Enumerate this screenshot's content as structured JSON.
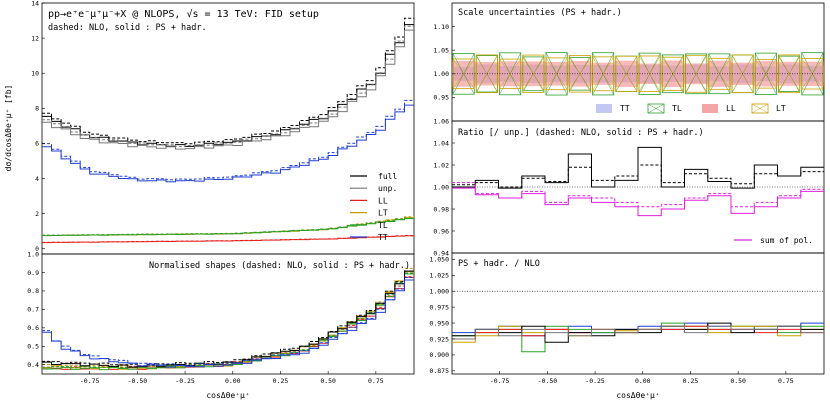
{
  "chart_data": [
    {
      "id": "main",
      "type": "line",
      "title": "pp→e⁺e⁻μ⁺μ⁻+X @ NLOPS, √s = 13 TeV: FID setup",
      "subtitle": "dashed: NLO, solid : PS + hadr.",
      "ylabel": "dσ/dcosΔθe⁺μ⁺ [fb]",
      "ylim": [
        -0.3,
        14
      ],
      "yticks": [
        0,
        2,
        4,
        6,
        8,
        10,
        12,
        14
      ],
      "bins": [
        -1.0,
        0.95
      ],
      "nbins": 39,
      "legend": [
        "full",
        "unp.",
        "LL",
        "LT",
        "TL",
        "TT"
      ],
      "series": [
        {
          "name": "full",
          "color": "#000000",
          "anchors": [
            [
              -1.0,
              7.6
            ],
            [
              -0.75,
              6.4
            ],
            [
              -0.5,
              6.0
            ],
            [
              -0.25,
              5.85
            ],
            [
              0.0,
              6.05
            ],
            [
              0.25,
              6.6
            ],
            [
              0.5,
              7.6
            ],
            [
              0.75,
              9.6
            ],
            [
              0.95,
              13.2
            ]
          ]
        },
        {
          "name": "unp.",
          "color": "#777777",
          "anchors": [
            [
              -1.0,
              7.3
            ],
            [
              -0.75,
              6.2
            ],
            [
              -0.5,
              5.85
            ],
            [
              -0.25,
              5.7
            ],
            [
              0.0,
              5.9
            ],
            [
              0.25,
              6.4
            ],
            [
              0.5,
              7.3
            ],
            [
              0.75,
              9.3
            ],
            [
              0.95,
              12.8
            ]
          ]
        },
        {
          "name": "LL",
          "color": "#e8201c",
          "anchors": [
            [
              -1.0,
              0.35
            ],
            [
              -0.5,
              0.4
            ],
            [
              0.0,
              0.45
            ],
            [
              0.5,
              0.55
            ],
            [
              0.95,
              0.75
            ]
          ]
        },
        {
          "name": "LT",
          "color": "#c8a000",
          "anchors": [
            [
              -1.0,
              0.75
            ],
            [
              -0.5,
              0.8
            ],
            [
              0.0,
              0.85
            ],
            [
              0.5,
              1.1
            ],
            [
              0.95,
              1.8
            ]
          ]
        },
        {
          "name": "TL",
          "color": "#2ca02c",
          "anchors": [
            [
              -1.0,
              0.75
            ],
            [
              -0.5,
              0.8
            ],
            [
              0.0,
              0.85
            ],
            [
              0.5,
              1.1
            ],
            [
              0.95,
              1.75
            ]
          ]
        },
        {
          "name": "TT",
          "color": "#1f3fd6",
          "anchors": [
            [
              -1.0,
              6.0
            ],
            [
              -0.75,
              4.35
            ],
            [
              -0.5,
              3.9
            ],
            [
              -0.25,
              3.85
            ],
            [
              0.0,
              4.0
            ],
            [
              0.25,
              4.4
            ],
            [
              0.5,
              5.2
            ],
            [
              0.75,
              6.6
            ],
            [
              0.95,
              8.5
            ]
          ]
        }
      ]
    },
    {
      "id": "shapes",
      "type": "line",
      "title": "Normalised shapes (dashed: NLO, solid : PS + hadr.)",
      "xlabel": "cosΔθe⁺μ⁺",
      "ylim": [
        0.35,
        1.0
      ],
      "yticks": [
        0.4,
        0.5,
        0.6,
        0.7,
        0.8,
        0.9,
        1.0
      ],
      "xticks": [
        -0.75,
        -0.5,
        -0.25,
        0.0,
        0.25,
        0.5,
        0.75
      ],
      "series": [
        {
          "name": "LL",
          "color": "#e8201c",
          "anchors": [
            [
              -1.0,
              0.38
            ],
            [
              -0.5,
              0.38
            ],
            [
              0.0,
              0.4
            ],
            [
              0.4,
              0.48
            ],
            [
              0.75,
              0.68
            ],
            [
              0.95,
              0.9
            ]
          ]
        },
        {
          "name": "LT",
          "color": "#c8a000",
          "anchors": [
            [
              -1.0,
              0.39
            ],
            [
              -0.5,
              0.38
            ],
            [
              0.0,
              0.4
            ],
            [
              0.4,
              0.49
            ],
            [
              0.75,
              0.7
            ],
            [
              0.95,
              0.94
            ]
          ]
        },
        {
          "name": "TL",
          "color": "#2ca02c",
          "anchors": [
            [
              -1.0,
              0.38
            ],
            [
              -0.5,
              0.38
            ],
            [
              0.0,
              0.4
            ],
            [
              0.4,
              0.48
            ],
            [
              0.75,
              0.69
            ],
            [
              0.95,
              0.92
            ]
          ]
        },
        {
          "name": "full",
          "color": "#000000",
          "anchors": [
            [
              -1.0,
              0.41
            ],
            [
              -0.5,
              0.39
            ],
            [
              0.0,
              0.41
            ],
            [
              0.4,
              0.5
            ],
            [
              0.75,
              0.7
            ],
            [
              0.95,
              0.93
            ]
          ]
        },
        {
          "name": "TT",
          "color": "#1f3fd6",
          "anchors": [
            [
              -1.0,
              0.6
            ],
            [
              -0.9,
              0.5
            ],
            [
              -0.75,
              0.44
            ],
            [
              -0.5,
              0.4
            ],
            [
              -0.25,
              0.39
            ],
            [
              0.0,
              0.4
            ],
            [
              0.4,
              0.47
            ],
            [
              0.75,
              0.66
            ],
            [
              0.95,
              0.89
            ]
          ]
        }
      ]
    },
    {
      "id": "scale",
      "type": "area",
      "title": "Scale uncertainties (PS + hadr.)",
      "ylim": [
        0.9,
        1.15
      ],
      "yticks": [
        0.95,
        1.0,
        1.05,
        1.1
      ],
      "legend": [
        "TT",
        "TL",
        "LL",
        "LT"
      ],
      "band_half_widths": [
        0.02,
        0.045,
        0.028,
        0.04
      ],
      "series_colors": [
        "#aab0ee",
        "#2ca02c",
        "#f08080",
        "#c8a000"
      ]
    },
    {
      "id": "ratio",
      "type": "line",
      "title": "Ratio [/ unp.] (dashed: NLO, solid : PS + hadr.)",
      "ylim": [
        0.94,
        1.06
      ],
      "yticks": [
        0.94,
        0.96,
        0.98,
        1.0,
        1.02,
        1.04,
        1.06
      ],
      "legend": [
        "sum of pol."
      ],
      "full_ps": [
        1.0,
        1.006,
        0.999,
        1.01,
        1.004,
        1.03,
        1.0,
        1.006,
        1.036,
        1.0,
        1.016,
        1.005,
        0.999,
        1.02,
        1.01,
        1.018
      ],
      "full_nlo": [
        1.002,
        1.004,
        1.0,
        1.008,
        1.005,
        1.018,
        1.006,
        1.01,
        1.02,
        1.004,
        1.012,
        1.008,
        1.003,
        1.012,
        1.01,
        1.014
      ],
      "sum_ps": [
        0.999,
        0.993,
        0.99,
        0.994,
        0.984,
        0.99,
        0.986,
        0.982,
        0.974,
        0.98,
        0.988,
        0.992,
        0.976,
        0.982,
        0.99,
        0.996
      ],
      "sum_nlo": [
        1.004,
        0.994,
        0.99,
        0.996,
        0.986,
        0.992,
        0.99,
        0.986,
        0.982,
        0.984,
        0.99,
        0.994,
        0.982,
        0.986,
        0.992,
        0.998
      ]
    },
    {
      "id": "pshad",
      "type": "line",
      "title": "PS + hadr. / NLO",
      "xlabel": "cosΔθe⁺μ⁺",
      "ylim": [
        0.87,
        1.06
      ],
      "yticks": [
        0.875,
        0.9,
        0.925,
        0.95,
        0.975,
        1.0,
        1.025,
        1.05
      ],
      "xticks": [
        -0.75,
        -0.5,
        -0.25,
        0.0,
        0.25,
        0.5,
        0.75
      ],
      "series": [
        {
          "name": "TT",
          "color": "#1f3fd6",
          "values": [
            0.935,
            0.94,
            0.945,
            0.93,
            0.94,
            0.945,
            0.935,
            0.94,
            0.945,
            0.94,
            0.95,
            0.945,
            0.94,
            0.945,
            0.945,
            0.95
          ]
        },
        {
          "name": "TL",
          "color": "#2ca02c",
          "values": [
            0.93,
            0.935,
            0.94,
            0.905,
            0.945,
            0.94,
            0.935,
            0.935,
            0.94,
            0.95,
            0.945,
            0.94,
            0.945,
            0.94,
            0.935,
            0.945
          ]
        },
        {
          "name": "LT",
          "color": "#c8a000",
          "values": [
            0.92,
            0.93,
            0.945,
            0.935,
            0.94,
            0.93,
            0.94,
            0.938,
            0.94,
            0.945,
            0.94,
            0.935,
            0.945,
            0.945,
            0.93,
            0.94
          ]
        },
        {
          "name": "LL",
          "color": "#e8201c",
          "values": [
            0.925,
            0.935,
            0.94,
            0.93,
            0.94,
            0.935,
            0.94,
            0.935,
            0.94,
            0.94,
            0.945,
            0.94,
            0.94,
            0.935,
            0.94,
            0.935
          ]
        },
        {
          "name": "full",
          "color": "#000000",
          "values": [
            0.93,
            0.94,
            0.935,
            0.945,
            0.92,
            0.935,
            0.93,
            0.94,
            0.935,
            0.945,
            0.94,
            0.95,
            0.935,
            0.94,
            0.945,
            0.94
          ]
        },
        {
          "name": "unp.",
          "color": "#777777",
          "values": [
            0.925,
            0.94,
            0.93,
            0.94,
            0.935,
            0.93,
            0.94,
            0.935,
            0.94,
            0.945,
            0.935,
            0.945,
            0.94,
            0.94,
            0.945,
            0.935
          ]
        }
      ]
    }
  ]
}
